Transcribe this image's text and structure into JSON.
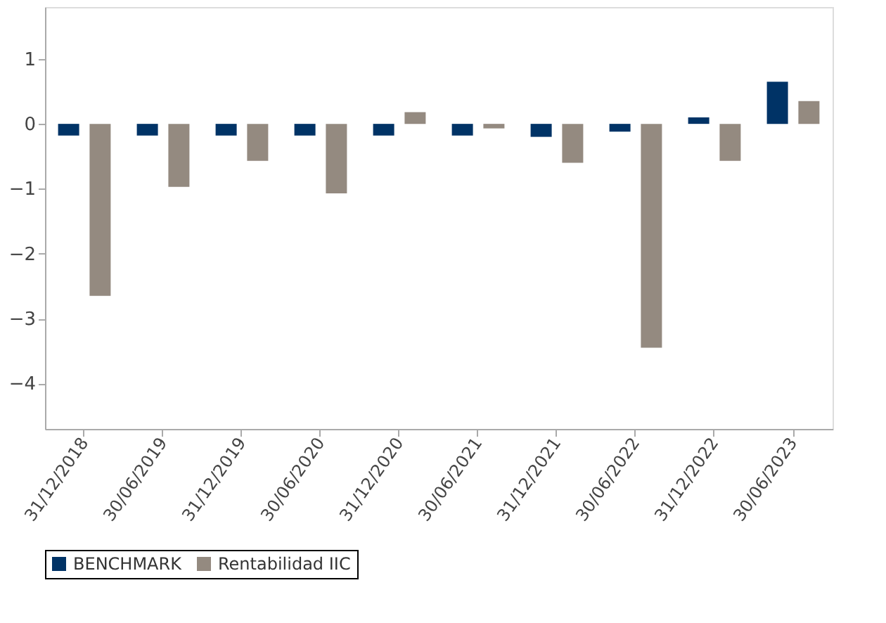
{
  "chart_data": {
    "type": "bar",
    "categories": [
      "31/12/2018",
      "30/06/2019",
      "31/12/2019",
      "30/06/2020",
      "31/12/2020",
      "30/06/2021",
      "31/12/2021",
      "30/06/2022",
      "31/12/2022",
      "30/06/2023"
    ],
    "series": [
      {
        "name": "BENCHMARK",
        "color": "#003366",
        "values": [
          -0.18,
          -0.18,
          -0.18,
          -0.18,
          -0.18,
          -0.18,
          -0.2,
          -0.12,
          0.1,
          0.65
        ]
      },
      {
        "name": "Rentabilidad IIC",
        "color": "#948a80",
        "values": [
          -2.65,
          -0.97,
          -0.57,
          -1.07,
          0.18,
          -0.07,
          -0.6,
          -3.45,
          -0.57,
          0.35
        ]
      }
    ],
    "ylim": [
      -4.7,
      1.8
    ],
    "yticks": [
      -4,
      -3,
      -2,
      -1,
      0,
      1
    ],
    "grid": false,
    "legend": "bottom"
  }
}
